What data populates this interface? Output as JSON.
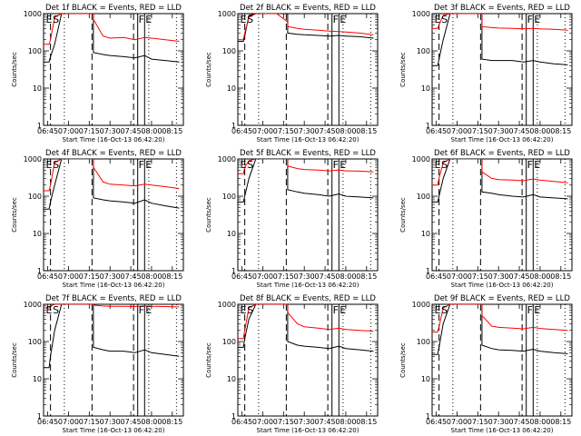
{
  "figure": {
    "y_label": "Counts/sec",
    "x_label": "Start Time (16-Oct-13 06:42:20)",
    "x_tick_labels": [
      "06:45",
      "07:00",
      "07:15",
      "07:30",
      "07:45",
      "08:00",
      "08:15"
    ],
    "y_tick_labels": [
      "1",
      "10",
      "100",
      "1000"
    ],
    "colors": {
      "events": "#000000",
      "lld": "#ff0000",
      "background": "#ffffff"
    }
  },
  "chart_data": [
    {
      "type": "line",
      "title": "Det 1f BLACK = Events, RED = LLD",
      "xlabel": "Start Time (16-Oct-13 06:42:20)",
      "ylabel": "Counts/sec",
      "xlim": [
        "06:42",
        "08:23"
      ],
      "ylim": [
        1,
        1000
      ],
      "y_scale": "log",
      "grid": false,
      "x": [
        "06:42",
        "06:46",
        "06:47",
        "06:50",
        "06:55",
        "07:10",
        "07:18",
        "07:18",
        "07:25",
        "07:30",
        "07:40",
        "07:48",
        "07:55",
        "08:00",
        "08:10",
        "08:20"
      ],
      "series": [
        {
          "name": "Events",
          "color": "#000000",
          "values": [
            50,
            50,
            70,
            150,
            1000,
            1000,
            1000,
            90,
            80,
            75,
            70,
            65,
            75,
            60,
            55,
            50
          ]
        },
        {
          "name": "LLD",
          "color": "#ff0000",
          "values": [
            150,
            150,
            200,
            800,
            1000,
            1000,
            1000,
            700,
            250,
            220,
            230,
            200,
            230,
            220,
            200,
            180
          ]
        }
      ],
      "markers": [
        {
          "label": "E",
          "time": "06:43"
        },
        {
          "label": "S",
          "time": "06:48"
        },
        {
          "label": "F",
          "time": "07:50"
        },
        {
          "label": "E",
          "time": "07:55"
        }
      ],
      "vlines_dashed": [
        "06:47",
        "07:17",
        "07:47"
      ],
      "vlines_dotted": [
        "06:57",
        "07:58",
        "08:18"
      ],
      "vlines_solid": [
        "07:50",
        "07:55"
      ]
    },
    {
      "type": "line",
      "title": "Det 2f BLACK = Events, RED = LLD",
      "xlabel": "Start Time (16-Oct-13 06:42:20)",
      "ylabel": "Counts/sec",
      "xlim": [
        "06:42",
        "08:23"
      ],
      "ylim": [
        1,
        1000
      ],
      "y_scale": "log",
      "grid": false,
      "x": [
        "06:42",
        "06:46",
        "06:47",
        "06:50",
        "06:55",
        "07:10",
        "07:18",
        "07:18",
        "07:25",
        "07:30",
        "07:40",
        "07:48",
        "07:55",
        "08:00",
        "08:10",
        "08:20"
      ],
      "series": [
        {
          "name": "Events",
          "color": "#000000",
          "values": [
            180,
            180,
            250,
            900,
            1000,
            1000,
            1000,
            300,
            280,
            270,
            260,
            250,
            260,
            250,
            240,
            220
          ]
        },
        {
          "name": "LLD",
          "color": "#ff0000",
          "values": [
            200,
            200,
            300,
            800,
            1000,
            1000,
            600,
            450,
            400,
            380,
            360,
            340,
            330,
            320,
            300,
            270
          ]
        }
      ],
      "markers": [
        {
          "label": "E",
          "time": "06:43"
        },
        {
          "label": "S",
          "time": "06:48"
        },
        {
          "label": "F",
          "time": "07:50"
        },
        {
          "label": "E",
          "time": "07:55"
        }
      ],
      "vlines_dashed": [
        "06:47",
        "07:17",
        "07:47"
      ],
      "vlines_dotted": [
        "06:57",
        "07:58",
        "08:18"
      ],
      "vlines_solid": [
        "07:50",
        "07:55"
      ]
    },
    {
      "type": "line",
      "title": "Det 3f BLACK = Events, RED = LLD",
      "xlabel": "Start Time (16-Oct-13 06:42:20)",
      "ylabel": "Counts/sec",
      "xlim": [
        "06:42",
        "08:23"
      ],
      "ylim": [
        1,
        1000
      ],
      "y_scale": "log",
      "grid": false,
      "x": [
        "06:42",
        "06:46",
        "06:47",
        "06:50",
        "06:55",
        "07:10",
        "07:18",
        "07:18",
        "07:25",
        "07:30",
        "07:40",
        "07:48",
        "07:55",
        "08:00",
        "08:10",
        "08:20"
      ],
      "series": [
        {
          "name": "Events",
          "color": "#000000",
          "values": [
            40,
            40,
            60,
            200,
            1000,
            1000,
            1000,
            60,
            55,
            55,
            55,
            50,
            55,
            50,
            45,
            42
          ]
        },
        {
          "name": "LLD",
          "color": "#ff0000",
          "values": [
            400,
            400,
            500,
            900,
            1000,
            1000,
            1000,
            450,
            420,
            410,
            400,
            390,
            400,
            390,
            380,
            360
          ]
        }
      ],
      "markers": [
        {
          "label": "E",
          "time": "06:43"
        },
        {
          "label": "S",
          "time": "06:48"
        },
        {
          "label": "F",
          "time": "07:50"
        },
        {
          "label": "E",
          "time": "07:55"
        }
      ],
      "vlines_dashed": [
        "06:47",
        "07:17",
        "07:47"
      ],
      "vlines_dotted": [
        "06:57",
        "07:58",
        "08:18"
      ],
      "vlines_solid": [
        "07:50",
        "07:55"
      ]
    },
    {
      "type": "line",
      "title": "Det 4f BLACK = Events, RED = LLD",
      "xlabel": "Start Time (16-Oct-13 06:42:20)",
      "ylabel": "Counts/sec",
      "xlim": [
        "06:42",
        "08:23"
      ],
      "ylim": [
        1,
        1000
      ],
      "y_scale": "log",
      "grid": false,
      "x": [
        "06:42",
        "06:46",
        "06:47",
        "06:50",
        "06:55",
        "07:10",
        "07:18",
        "07:18",
        "07:25",
        "07:30",
        "07:40",
        "07:48",
        "07:55",
        "08:00",
        "08:10",
        "08:20"
      ],
      "series": [
        {
          "name": "Events",
          "color": "#000000",
          "values": [
            45,
            45,
            70,
            200,
            1000,
            1000,
            1000,
            90,
            80,
            75,
            70,
            65,
            80,
            65,
            55,
            48
          ]
        },
        {
          "name": "LLD",
          "color": "#ff0000",
          "values": [
            140,
            140,
            200,
            800,
            1000,
            1000,
            1000,
            600,
            240,
            210,
            200,
            190,
            210,
            200,
            180,
            160
          ]
        }
      ],
      "markers": [
        {
          "label": "E",
          "time": "06:43"
        },
        {
          "label": "S",
          "time": "06:48"
        },
        {
          "label": "F",
          "time": "07:50"
        },
        {
          "label": "E",
          "time": "07:55"
        }
      ],
      "vlines_dashed": [
        "06:47",
        "07:17",
        "07:47"
      ],
      "vlines_dotted": [
        "06:57",
        "07:58",
        "08:18"
      ],
      "vlines_solid": [
        "07:50",
        "07:55"
      ]
    },
    {
      "type": "line",
      "title": "Det 5f BLACK = Events, RED = LLD",
      "xlabel": "Start Time (16-Oct-13 06:42:20)",
      "ylabel": "Counts/sec",
      "xlim": [
        "06:42",
        "08:23"
      ],
      "ylim": [
        1,
        1000
      ],
      "y_scale": "log",
      "grid": false,
      "x": [
        "06:42",
        "06:46",
        "06:47",
        "06:50",
        "06:55",
        "07:10",
        "07:18",
        "07:18",
        "07:25",
        "07:30",
        "07:40",
        "07:48",
        "07:55",
        "08:00",
        "08:10",
        "08:20"
      ],
      "series": [
        {
          "name": "Events",
          "color": "#000000",
          "values": [
            70,
            70,
            100,
            300,
            1000,
            1000,
            1000,
            150,
            130,
            120,
            110,
            100,
            115,
            100,
            95,
            90
          ]
        },
        {
          "name": "LLD",
          "color": "#ff0000",
          "values": [
            400,
            400,
            600,
            900,
            1000,
            1000,
            1000,
            650,
            550,
            520,
            500,
            480,
            500,
            480,
            470,
            450
          ]
        }
      ],
      "markers": [
        {
          "label": "E",
          "time": "06:43"
        },
        {
          "label": "S",
          "time": "06:48"
        },
        {
          "label": "F",
          "time": "07:50"
        },
        {
          "label": "E",
          "time": "07:55"
        }
      ],
      "vlines_dashed": [
        "06:47",
        "07:17",
        "07:47"
      ],
      "vlines_dotted": [
        "06:57",
        "07:58",
        "08:18"
      ],
      "vlines_solid": [
        "07:50",
        "07:55"
      ]
    },
    {
      "type": "line",
      "title": "Det 6f BLACK = Events, RED = LLD",
      "xlabel": "Start Time (16-Oct-13 06:42:20)",
      "ylabel": "Counts/sec",
      "xlim": [
        "06:42",
        "08:23"
      ],
      "ylim": [
        1,
        1000
      ],
      "y_scale": "log",
      "grid": false,
      "x": [
        "06:42",
        "06:46",
        "06:47",
        "06:50",
        "06:55",
        "07:10",
        "07:18",
        "07:18",
        "07:25",
        "07:30",
        "07:40",
        "07:48",
        "07:55",
        "08:00",
        "08:10",
        "08:20"
      ],
      "series": [
        {
          "name": "Events",
          "color": "#000000",
          "values": [
            70,
            70,
            100,
            300,
            1000,
            1000,
            1000,
            130,
            120,
            110,
            100,
            95,
            110,
            95,
            90,
            85
          ]
        },
        {
          "name": "LLD",
          "color": "#ff0000",
          "values": [
            200,
            200,
            300,
            800,
            1000,
            1000,
            1000,
            450,
            300,
            280,
            270,
            260,
            290,
            270,
            250,
            230
          ]
        }
      ],
      "markers": [
        {
          "label": "E",
          "time": "06:43"
        },
        {
          "label": "S",
          "time": "06:48"
        },
        {
          "label": "F",
          "time": "07:50"
        },
        {
          "label": "E",
          "time": "07:55"
        }
      ],
      "vlines_dashed": [
        "06:47",
        "07:17",
        "07:47"
      ],
      "vlines_dotted": [
        "06:57",
        "07:58",
        "08:18"
      ],
      "vlines_solid": [
        "07:50",
        "07:55"
      ]
    },
    {
      "type": "line",
      "title": "Det 7f BLACK = Events, RED = LLD",
      "xlabel": "Start Time (16-Oct-13 06:42:20)",
      "ylabel": "Counts/sec",
      "xlim": [
        "06:42",
        "08:23"
      ],
      "ylim": [
        1,
        1000
      ],
      "y_scale": "log",
      "grid": false,
      "x": [
        "06:42",
        "06:46",
        "06:47",
        "06:50",
        "06:55",
        "07:10",
        "07:18",
        "07:18",
        "07:25",
        "07:30",
        "07:40",
        "07:48",
        "07:55",
        "08:00",
        "08:10",
        "08:20"
      ],
      "series": [
        {
          "name": "Events",
          "color": "#000000",
          "values": [
            20,
            20,
            40,
            200,
            1000,
            1000,
            1000,
            70,
            60,
            55,
            55,
            50,
            60,
            50,
            45,
            40
          ]
        },
        {
          "name": "LLD",
          "color": "#ff0000",
          "values": [
            800,
            800,
            900,
            1000,
            1000,
            1000,
            1000,
            950,
            900,
            880,
            880,
            870,
            900,
            880,
            870,
            850
          ]
        }
      ],
      "markers": [
        {
          "label": "E",
          "time": "06:43"
        },
        {
          "label": "S",
          "time": "06:48"
        },
        {
          "label": "F",
          "time": "07:50"
        },
        {
          "label": "E",
          "time": "07:55"
        }
      ],
      "vlines_dashed": [
        "06:47",
        "07:17",
        "07:47"
      ],
      "vlines_dotted": [
        "06:57",
        "07:58",
        "08:18"
      ],
      "vlines_solid": [
        "07:50",
        "07:55"
      ]
    },
    {
      "type": "line",
      "title": "Det 8f BLACK = Events, RED = LLD",
      "xlabel": "Start Time (16-Oct-13 06:42:20)",
      "ylabel": "Counts/sec",
      "xlim": [
        "06:42",
        "08:23"
      ],
      "ylim": [
        1,
        1000
      ],
      "y_scale": "log",
      "grid": false,
      "x": [
        "06:42",
        "06:46",
        "06:47",
        "06:50",
        "06:55",
        "07:10",
        "07:18",
        "07:18",
        "07:25",
        "07:30",
        "07:40",
        "07:48",
        "07:55",
        "08:00",
        "08:10",
        "08:20"
      ],
      "series": [
        {
          "name": "Events",
          "color": "#000000",
          "values": [
            70,
            70,
            120,
            400,
            1000,
            1000,
            1000,
            100,
            80,
            75,
            70,
            65,
            75,
            65,
            60,
            55
          ]
        },
        {
          "name": "LLD",
          "color": "#ff0000",
          "values": [
            120,
            120,
            200,
            800,
            1000,
            1000,
            1000,
            600,
            300,
            250,
            230,
            210,
            230,
            210,
            200,
            190
          ]
        }
      ],
      "markers": [
        {
          "label": "E",
          "time": "06:43"
        },
        {
          "label": "S",
          "time": "06:48"
        },
        {
          "label": "F",
          "time": "07:50"
        },
        {
          "label": "E",
          "time": "07:55"
        }
      ],
      "vlines_dashed": [
        "06:47",
        "07:17",
        "07:47"
      ],
      "vlines_dotted": [
        "06:57",
        "07:58",
        "08:18"
      ],
      "vlines_solid": [
        "07:50",
        "07:55"
      ]
    },
    {
      "type": "line",
      "title": "Det 9f BLACK = Events, RED = LLD",
      "xlabel": "Start Time (16-Oct-13 06:42:20)",
      "ylabel": "Counts/sec",
      "xlim": [
        "06:42",
        "08:23"
      ],
      "ylim": [
        1,
        1000
      ],
      "y_scale": "log",
      "grid": false,
      "x": [
        "06:42",
        "06:46",
        "06:47",
        "06:50",
        "06:55",
        "07:10",
        "07:18",
        "07:18",
        "07:25",
        "07:30",
        "07:40",
        "07:48",
        "07:55",
        "08:00",
        "08:10",
        "08:20"
      ],
      "series": [
        {
          "name": "Events",
          "color": "#000000",
          "values": [
            45,
            45,
            70,
            300,
            1000,
            1000,
            1000,
            80,
            65,
            60,
            58,
            55,
            62,
            55,
            50,
            47
          ]
        },
        {
          "name": "LLD",
          "color": "#ff0000",
          "values": [
            180,
            180,
            250,
            800,
            1000,
            1000,
            1000,
            500,
            260,
            240,
            230,
            220,
            240,
            225,
            210,
            200
          ]
        }
      ],
      "markers": [
        {
          "label": "E",
          "time": "06:43"
        },
        {
          "label": "S",
          "time": "06:48"
        },
        {
          "label": "F",
          "time": "07:50"
        },
        {
          "label": "E",
          "time": "07:55"
        }
      ],
      "vlines_dashed": [
        "06:47",
        "07:17",
        "07:47"
      ],
      "vlines_dotted": [
        "06:57",
        "07:58",
        "08:18"
      ],
      "vlines_solid": [
        "07:50",
        "07:55"
      ]
    }
  ]
}
